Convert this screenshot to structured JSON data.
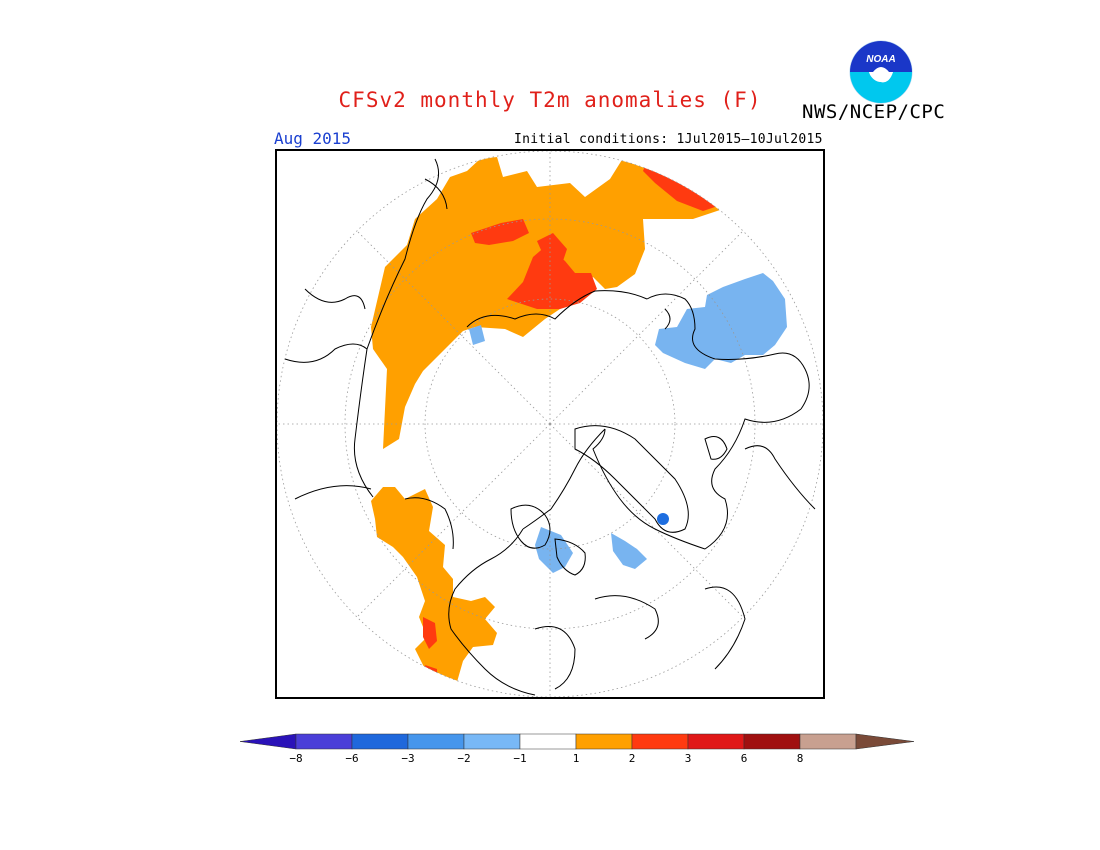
{
  "title": "CFSv2 monthly T2m anomalies (F)",
  "agency": "NWS/NCEP/CPC",
  "logo_text": "NOAA",
  "period": "Aug 2015",
  "initial_conditions": "Initial conditions: 1Jul2015—10Jul2015",
  "map": {
    "projection": "north polar stereographic",
    "colors": {
      "anomaly_1_2": "#ffa000",
      "anomaly_2_3": "#ff3a10",
      "anomaly_-1_-2": "#78b4f0",
      "anomaly_-3_-6": "#1e6ee0",
      "coastline": "#000000",
      "graticule": "#999999"
    }
  },
  "legend": {
    "colors": [
      "#2a12b8",
      "#4a3ed8",
      "#1f68dc",
      "#4696ec",
      "#78b8f6",
      "#ffffff",
      "#ffa000",
      "#ff3a10",
      "#e01818",
      "#a01010",
      "#c8a090",
      "#7a4a38"
    ],
    "labels": [
      "−8",
      "−6",
      "−3",
      "−2",
      "−1",
      "1",
      "2",
      "3",
      "6",
      "8"
    ]
  }
}
